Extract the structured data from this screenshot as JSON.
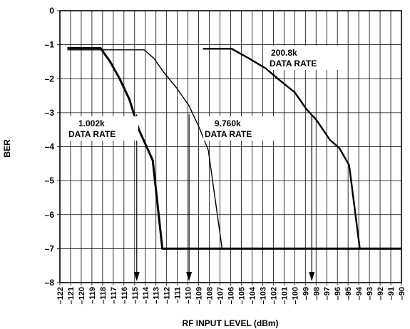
{
  "chart_data": {
    "type": "line",
    "title": "",
    "xlabel": "RF INPUT LEVEL (dBm)",
    "ylabel": "BER",
    "xlim": [
      -122,
      -90
    ],
    "ylim": [
      -8,
      0
    ],
    "x_ticks": [
      -122,
      -121,
      -120,
      -119,
      -118,
      -117,
      -116,
      -115,
      -114,
      -113,
      -112,
      -111,
      -110,
      -109,
      -108,
      -107,
      -106,
      -105,
      -104,
      -103,
      -102,
      -101,
      -100,
      -99,
      -98,
      -97,
      -96,
      -95,
      -94,
      -93,
      -92,
      -91,
      -90
    ],
    "y_ticks": [
      0,
      -1,
      -2,
      -3,
      -4,
      -5,
      -6,
      -7,
      -8
    ],
    "grid": true,
    "series": [
      {
        "name": "1.002k DATA RATE",
        "points": [
          [
            -121.3,
            -1.1
          ],
          [
            -118.2,
            -1.1
          ],
          [
            -117.3,
            -1.5
          ],
          [
            -116.4,
            -2.0
          ],
          [
            -115.5,
            -2.6
          ],
          [
            -114.6,
            -3.5
          ],
          [
            -113.3,
            -4.4
          ],
          [
            -112.4,
            -7.0
          ],
          [
            -90,
            -7.0
          ]
        ]
      },
      {
        "name": "9.760k DATA RATE",
        "points": [
          [
            -121.3,
            -1.15
          ],
          [
            -114.1,
            -1.15
          ],
          [
            -113.2,
            -1.4
          ],
          [
            -112.3,
            -1.8
          ],
          [
            -111.0,
            -2.3
          ],
          [
            -109.9,
            -2.8
          ],
          [
            -109.0,
            -3.4
          ],
          [
            -108.1,
            -4.1
          ],
          [
            -106.8,
            -7.0
          ]
        ]
      },
      {
        "name": "200.8k DATA RATE",
        "points": [
          [
            -108.6,
            -1.12
          ],
          [
            -105.9,
            -1.12
          ],
          [
            -104.3,
            -1.4
          ],
          [
            -102.7,
            -1.7
          ],
          [
            -101.4,
            -2.05
          ],
          [
            -100.0,
            -2.4
          ],
          [
            -98.9,
            -2.9
          ],
          [
            -98.0,
            -3.2
          ],
          [
            -96.7,
            -3.8
          ],
          [
            -95.8,
            -4.05
          ],
          [
            -94.9,
            -4.55
          ],
          [
            -93.9,
            -7.0
          ]
        ]
      }
    ],
    "annotations": [
      {
        "lines": [
          "1.002k",
          "DATA RATE"
        ]
      },
      {
        "lines": [
          "9.760k",
          "DATA RATE"
        ]
      },
      {
        "lines": [
          "200.8k",
          "DATA RATE"
        ]
      }
    ],
    "arrows": [
      -114.8,
      -109.9,
      -98.4
    ],
    "colors": {
      "line": "#000000",
      "grid": "#000000"
    }
  }
}
